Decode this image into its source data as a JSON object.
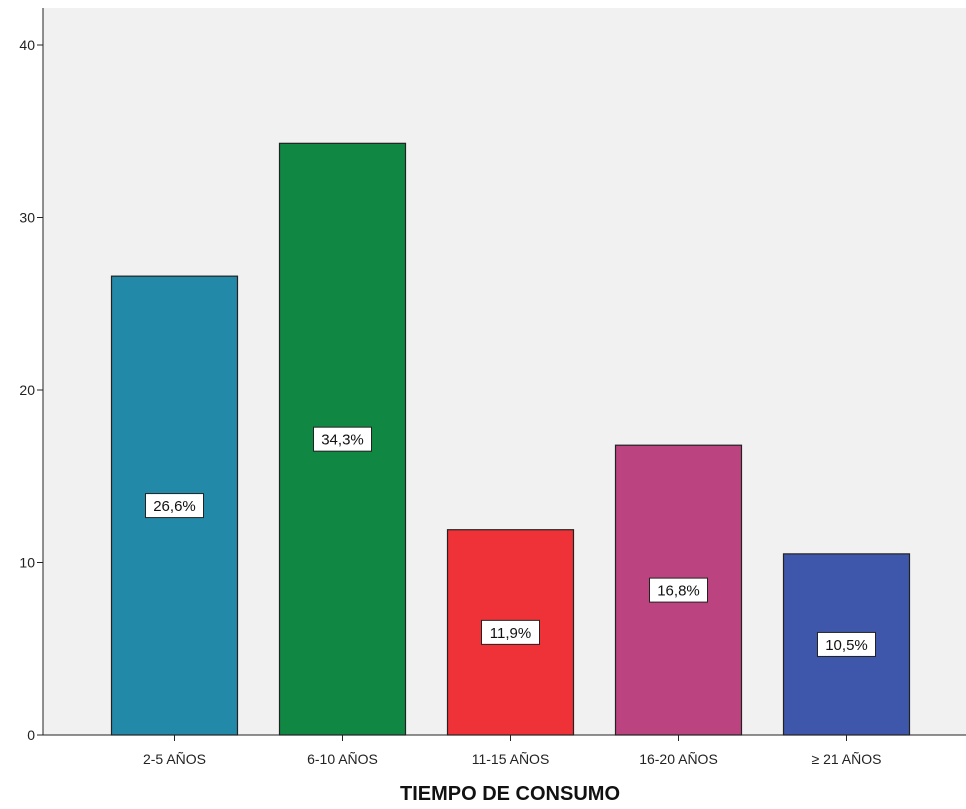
{
  "chart_data": {
    "type": "bar",
    "categories": [
      "2-5 AÑOS",
      "6-10 AÑOS",
      "11-15 AÑOS",
      "16-20 AÑOS",
      "≥ 21 AÑOS"
    ],
    "values": [
      26.6,
      34.3,
      11.9,
      16.8,
      10.5
    ],
    "data_labels": [
      "26,6%",
      "34,3%",
      "11,9%",
      "16,8%",
      "10,5%"
    ],
    "bar_colors": [
      "#2389a9",
      "#108844",
      "#ee3238",
      "#bb4380",
      "#3f57aa"
    ],
    "xlabel": "TIEMPO DE CONSUMO",
    "ylabel": "",
    "ylim": [
      0,
      40
    ],
    "yticks": [
      0,
      10,
      20,
      30,
      40
    ],
    "grid": false,
    "legend": "none",
    "plot_background": "#f1f1f1"
  }
}
